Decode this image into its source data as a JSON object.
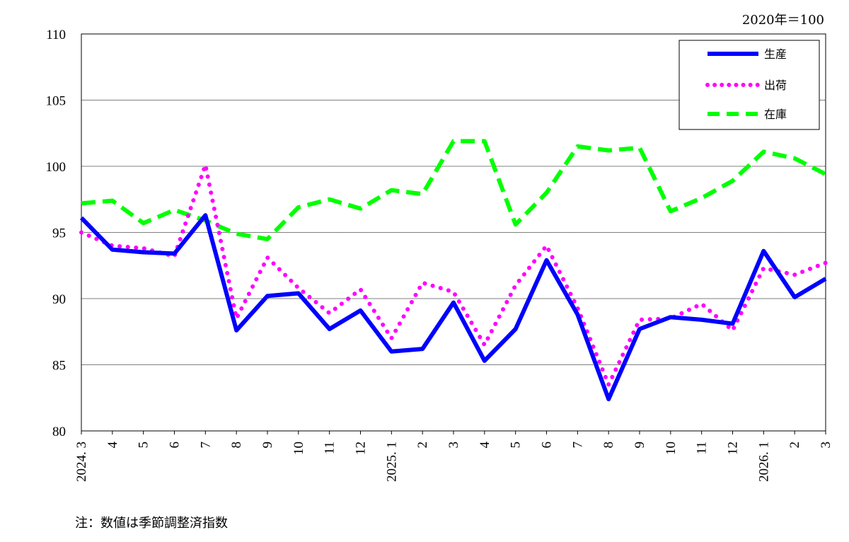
{
  "unit_note": "2020年＝100",
  "footnote": "注：数値は季節調整済指数",
  "chart_data": {
    "type": "line",
    "title": "",
    "xlabel": "",
    "ylabel": "",
    "ylim": [
      80,
      110
    ],
    "yticks": [
      80,
      85,
      90,
      95,
      100,
      105,
      110
    ],
    "grid": "horizontal dotted",
    "legend_position": "top-right",
    "categories": [
      "2024. 3",
      "4",
      "5",
      "6",
      "7",
      "8",
      "9",
      "10",
      "11",
      "12",
      "2025. 1",
      "2",
      "3",
      "4",
      "5",
      "6",
      "7",
      "8",
      "9",
      "10",
      "11",
      "12",
      "2026. 1",
      "2",
      "3"
    ],
    "series": [
      {
        "name": "生産",
        "color": "#0000ff",
        "style": "solid",
        "values": [
          96.1,
          93.7,
          93.5,
          93.4,
          96.3,
          87.6,
          90.2,
          90.4,
          87.7,
          89.1,
          86.0,
          86.2,
          89.7,
          85.3,
          87.7,
          92.9,
          88.8,
          82.4,
          87.7,
          88.6,
          88.4,
          88.1,
          93.6,
          90.1,
          91.5
        ]
      },
      {
        "name": "出荷",
        "color": "#ff00ff",
        "style": "dotted",
        "values": [
          95.0,
          94.0,
          93.8,
          93.2,
          100.1,
          88.5,
          93.1,
          90.8,
          88.9,
          90.7,
          87.0,
          91.2,
          90.5,
          86.5,
          91.0,
          94.0,
          89.3,
          83.5,
          88.4,
          88.5,
          89.6,
          87.6,
          92.3,
          91.8,
          92.7
        ]
      },
      {
        "name": "在庫",
        "color": "#00ff00",
        "style": "dashed",
        "values": [
          97.2,
          97.4,
          95.7,
          96.7,
          95.9,
          94.9,
          94.5,
          96.9,
          97.5,
          96.8,
          98.2,
          97.9,
          101.9,
          101.9,
          95.6,
          98.0,
          101.5,
          101.2,
          101.4,
          96.6,
          97.6,
          98.9,
          101.1,
          100.6,
          99.4
        ]
      }
    ]
  }
}
